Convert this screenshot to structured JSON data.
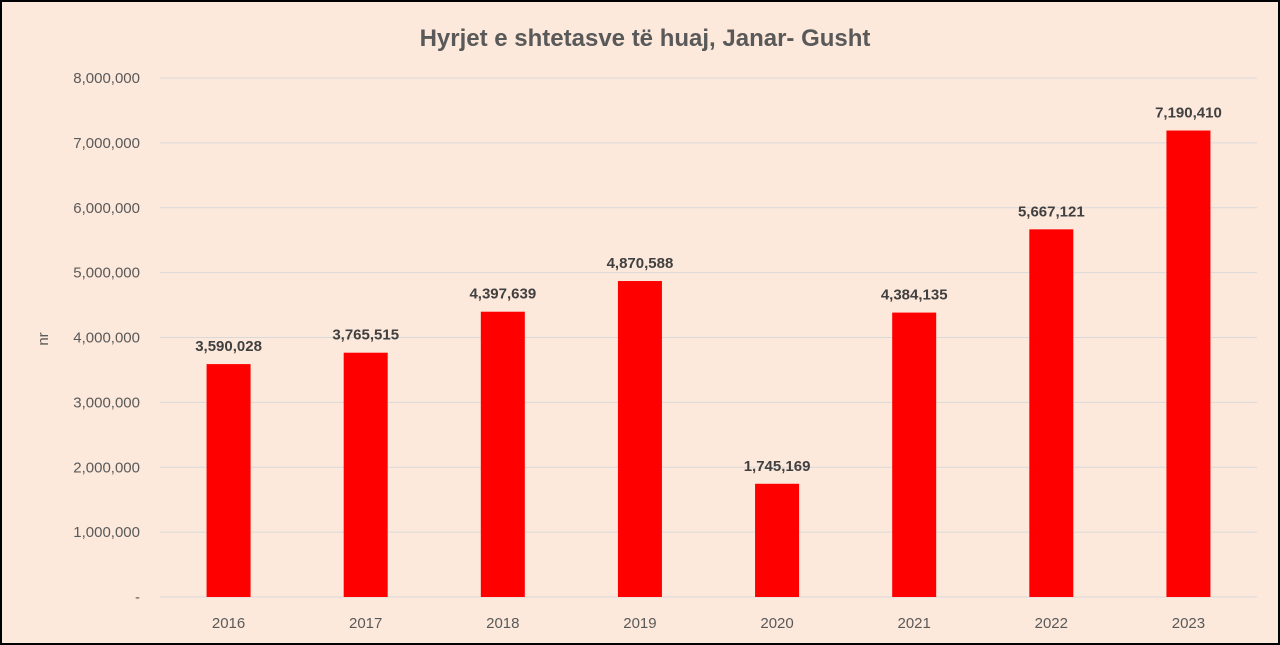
{
  "chart_data": {
    "type": "bar",
    "title": "Hyrjet e shtetasve të huaj, Janar- Gusht",
    "xlabel": "",
    "ylabel": "nr",
    "categories": [
      "2016",
      "2017",
      "2018",
      "2019",
      "2020",
      "2021",
      "2022",
      "2023"
    ],
    "values": [
      3590028,
      3765515,
      4397639,
      4870588,
      1745169,
      4384135,
      5667121,
      7190410
    ],
    "data_labels": [
      "3,590,028",
      "3,765,515",
      "4,397,639",
      "4,870,588",
      "1,745,169",
      "4,384,135",
      "5,667,121",
      "7,190,410"
    ],
    "ylim": [
      0,
      8000000
    ],
    "yticks": [
      0,
      1000000,
      2000000,
      3000000,
      4000000,
      5000000,
      6000000,
      7000000,
      8000000
    ],
    "ytick_labels": [
      "-",
      "1,000,000",
      "2,000,000",
      "3,000,000",
      "4,000,000",
      "5,000,000",
      "6,000,000",
      "7,000,000",
      "8,000,000"
    ],
    "grid": true,
    "legend": "none",
    "colors": {
      "bar": "#ff0000",
      "background": "#fde9dc",
      "grid": "#d9d9d9",
      "text": "#595959",
      "data_label": "#404040"
    }
  }
}
